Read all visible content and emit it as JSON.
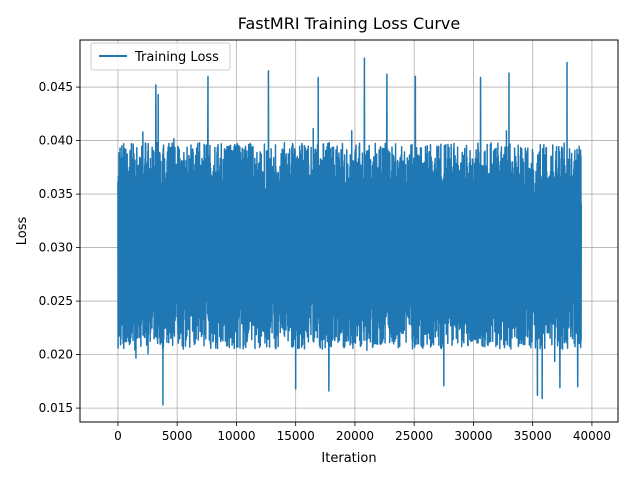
{
  "chart_data": {
    "type": "line",
    "title": "FastMRI Training Loss Curve",
    "xlabel": "Iteration",
    "ylabel": "Loss",
    "xlim": [
      -3200,
      42200
    ],
    "ylim": [
      0.0137,
      0.0494
    ],
    "x_ticks": [
      0,
      5000,
      10000,
      15000,
      20000,
      25000,
      30000,
      35000,
      40000
    ],
    "y_ticks": [
      0.015,
      0.02,
      0.025,
      0.03,
      0.035,
      0.04,
      0.045
    ],
    "x_tick_labels": [
      "0",
      "5000",
      "10000",
      "15000",
      "20000",
      "25000",
      "30000",
      "35000",
      "40000"
    ],
    "y_tick_labels": [
      "0.015",
      "0.020",
      "0.025",
      "0.030",
      "0.035",
      "0.040",
      "0.045"
    ],
    "grid": true,
    "legend": {
      "position": "top-left",
      "entries": [
        "Training Loss"
      ]
    },
    "series": [
      {
        "name": "Training Loss",
        "color": "#1f77b4",
        "x_range": [
          0,
          39100
        ],
        "typical_band": [
          0.0205,
          0.0398
        ],
        "mean": 0.03,
        "spikes": [
          {
            "x": 3200,
            "y": 0.0452
          },
          {
            "x": 3400,
            "y": 0.0443
          },
          {
            "x": 7600,
            "y": 0.046
          },
          {
            "x": 12700,
            "y": 0.0465
          },
          {
            "x": 16900,
            "y": 0.0459
          },
          {
            "x": 20800,
            "y": 0.0477
          },
          {
            "x": 22700,
            "y": 0.0462
          },
          {
            "x": 25100,
            "y": 0.046
          },
          {
            "x": 30600,
            "y": 0.0459
          },
          {
            "x": 33000,
            "y": 0.0463
          },
          {
            "x": 37900,
            "y": 0.0473
          },
          {
            "x": 3800,
            "y": 0.0153
          },
          {
            "x": 15000,
            "y": 0.0168
          },
          {
            "x": 17800,
            "y": 0.0166
          },
          {
            "x": 27500,
            "y": 0.0171
          },
          {
            "x": 35400,
            "y": 0.0162
          },
          {
            "x": 35800,
            "y": 0.0159
          },
          {
            "x": 37300,
            "y": 0.0169
          },
          {
            "x": 38800,
            "y": 0.017
          }
        ]
      }
    ]
  }
}
